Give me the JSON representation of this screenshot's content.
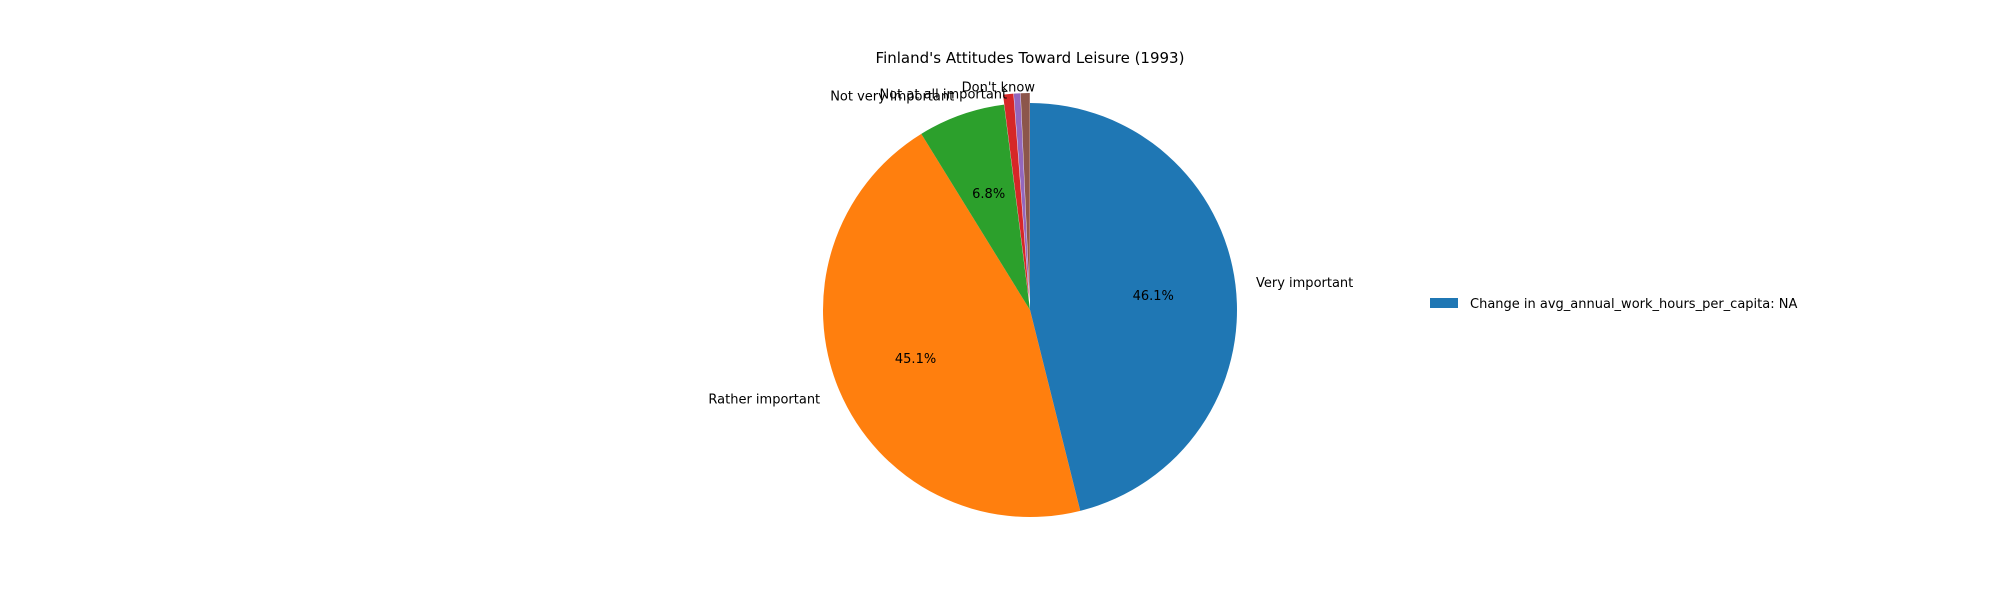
{
  "chart_data": {
    "type": "pie",
    "title": "Finland's Attitudes Toward Leisure (1993)",
    "slices": [
      {
        "label": "Very important",
        "value": 46.1,
        "pct_label": "46.1%",
        "color": "#1f77b4"
      },
      {
        "label": "Rather important",
        "value": 45.1,
        "pct_label": "45.1%",
        "color": "#ff7f0e"
      },
      {
        "label": "Not very important",
        "value": 6.8,
        "pct_label": "6.8%",
        "color": "#2ca02c"
      },
      {
        "label": "Not at all important",
        "value": 0.8,
        "pct_label": "",
        "color": "#d62728"
      },
      {
        "label": "",
        "value": 0.5,
        "pct_label": "",
        "color": "#9467bd"
      },
      {
        "label": "Don't know",
        "value": 0.7,
        "pct_label": "",
        "color": "#8c564b"
      }
    ],
    "start_angle_deg": 90,
    "direction": "clockwise",
    "legend": {
      "placement": "right",
      "entries": [
        {
          "label": "Change in avg_annual_work_hours_per_capita: NA",
          "color": "#1f77b4"
        }
      ]
    }
  }
}
